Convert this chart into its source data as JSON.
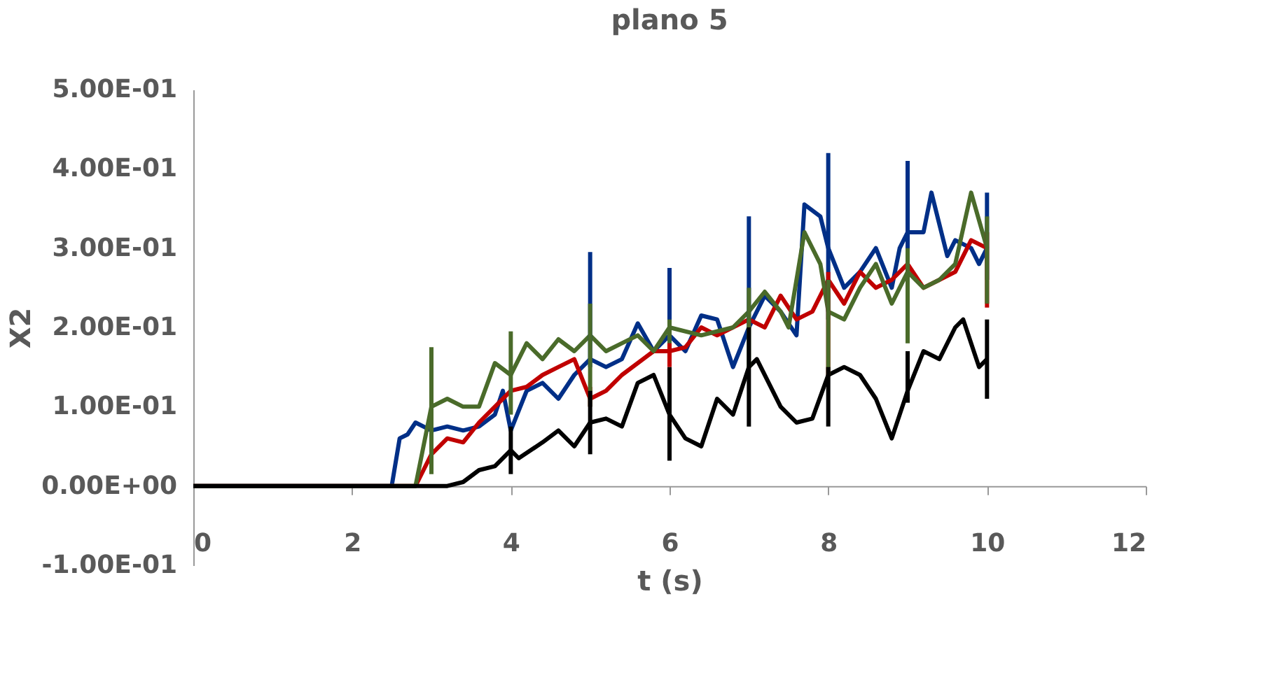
{
  "chart_data": {
    "type": "line",
    "title": "plano 5",
    "xlabel": "t (s)",
    "ylabel": "X2",
    "xlim": [
      0,
      12
    ],
    "xticks": [
      0,
      2,
      4,
      6,
      8,
      10,
      12
    ],
    "ylim": [
      -0.1,
      0.5
    ],
    "yticks": [
      {
        "value": -0.1,
        "label": "-1.00E-01"
      },
      {
        "value": 0,
        "label": "0.00E+00"
      },
      {
        "value": 0.1,
        "label": "1.00E-01"
      },
      {
        "value": 0.2,
        "label": "2.00E-01"
      },
      {
        "value": 0.3,
        "label": "3.00E-01"
      },
      {
        "value": 0.4,
        "label": "4.00E-01"
      },
      {
        "value": 0.5,
        "label": "5.00E-01"
      }
    ],
    "grid": false,
    "legend": false,
    "marker": "none",
    "line_style": "solid",
    "series": [
      {
        "color": "#002f87",
        "x": [
          0,
          2.5,
          2.6,
          2.7,
          2.8,
          3.0,
          3.2,
          3.4,
          3.6,
          3.8,
          3.9,
          4.0,
          4.2,
          4.4,
          4.6,
          4.8,
          5.0,
          5.2,
          5.4,
          5.6,
          5.8,
          6.0,
          6.2,
          6.4,
          6.6,
          6.8,
          7.0,
          7.2,
          7.4,
          7.6,
          7.7,
          7.9,
          8.0,
          8.2,
          8.4,
          8.6,
          8.8,
          8.9,
          9.0,
          9.2,
          9.3,
          9.5,
          9.6,
          9.8,
          9.9,
          10.0
        ],
        "values": [
          0,
          0,
          0.06,
          0.065,
          0.08,
          0.07,
          0.075,
          0.07,
          0.075,
          0.09,
          0.12,
          0.07,
          0.12,
          0.13,
          0.11,
          0.14,
          0.16,
          0.15,
          0.16,
          0.205,
          0.17,
          0.19,
          0.17,
          0.215,
          0.21,
          0.15,
          0.2,
          0.24,
          0.22,
          0.19,
          0.355,
          0.34,
          0.3,
          0.25,
          0.27,
          0.3,
          0.25,
          0.3,
          0.32,
          0.32,
          0.37,
          0.29,
          0.31,
          0.3,
          0.28,
          0.3
        ],
        "errors": [
          null,
          null,
          null,
          null,
          null,
          null,
          null,
          null,
          null,
          null,
          null,
          null,
          null,
          null,
          null,
          null,
          [
            0.15,
            0.295
          ],
          null,
          null,
          null,
          null,
          [
            0.17,
            0.275
          ],
          null,
          null,
          null,
          null,
          [
            0.2,
            0.34
          ],
          null,
          null,
          null,
          null,
          null,
          [
            0.21,
            0.42
          ],
          null,
          null,
          null,
          null,
          null,
          [
            0.26,
            0.41
          ],
          null,
          null,
          null,
          null,
          null,
          null,
          [
            0.26,
            0.37
          ]
        ]
      },
      {
        "color": "#c00000",
        "x": [
          0,
          2.8,
          2.9,
          3.0,
          3.2,
          3.4,
          3.6,
          3.8,
          4.0,
          4.2,
          4.4,
          4.6,
          4.8,
          5.0,
          5.2,
          5.4,
          5.8,
          6.0,
          6.2,
          6.4,
          6.6,
          7.0,
          7.2,
          7.4,
          7.6,
          7.8,
          8.0,
          8.2,
          8.4,
          8.6,
          8.8,
          9.0,
          9.2,
          9.4,
          9.6,
          9.8,
          10.0
        ],
        "values": [
          0,
          0,
          0.02,
          0.04,
          0.06,
          0.055,
          0.08,
          0.1,
          0.12,
          0.125,
          0.14,
          0.15,
          0.16,
          0.11,
          0.12,
          0.14,
          0.17,
          0.17,
          0.175,
          0.2,
          0.19,
          0.21,
          0.2,
          0.24,
          0.21,
          0.22,
          0.26,
          0.23,
          0.27,
          0.25,
          0.26,
          0.28,
          0.25,
          0.26,
          0.27,
          0.31,
          0.3
        ],
        "errors": [
          null,
          null,
          null,
          [
            0.03,
            0.05
          ],
          null,
          null,
          null,
          null,
          null,
          null,
          null,
          null,
          null,
          [
            0.1,
            0.125
          ],
          null,
          null,
          null,
          [
            0.15,
            0.19
          ],
          null,
          null,
          null,
          null,
          null,
          null,
          null,
          null,
          [
            0.14,
            0.27
          ],
          null,
          null,
          null,
          null,
          null,
          null,
          null,
          null,
          null,
          [
            0.225,
            0.32
          ]
        ]
      },
      {
        "color": "#4a6b2a",
        "x": [
          0,
          2.8,
          2.9,
          3.0,
          3.2,
          3.4,
          3.6,
          3.8,
          4.0,
          4.2,
          4.4,
          4.6,
          4.8,
          5.0,
          5.2,
          5.4,
          5.6,
          5.8,
          6.0,
          6.4,
          6.8,
          7.0,
          7.2,
          7.4,
          7.5,
          7.7,
          7.9,
          8.0,
          8.2,
          8.4,
          8.6,
          8.8,
          9.0,
          9.2,
          9.4,
          9.6,
          9.8,
          10.0
        ],
        "values": [
          0,
          0,
          0.05,
          0.1,
          0.11,
          0.1,
          0.1,
          0.155,
          0.14,
          0.18,
          0.16,
          0.185,
          0.17,
          0.19,
          0.17,
          0.18,
          0.19,
          0.17,
          0.2,
          0.19,
          0.2,
          0.22,
          0.245,
          0.22,
          0.2,
          0.32,
          0.28,
          0.22,
          0.21,
          0.25,
          0.28,
          0.23,
          0.27,
          0.25,
          0.26,
          0.28,
          0.37,
          0.3
        ],
        "errors": [
          null,
          null,
          null,
          [
            0.015,
            0.175
          ],
          null,
          null,
          null,
          null,
          [
            0.09,
            0.195
          ],
          null,
          null,
          null,
          null,
          [
            0.1,
            0.23
          ],
          null,
          null,
          null,
          null,
          [
            0.18,
            0.21
          ],
          null,
          null,
          [
            0.15,
            0.25
          ],
          null,
          null,
          null,
          null,
          null,
          [
            0.14,
            0.26
          ],
          null,
          null,
          null,
          null,
          [
            0.18,
            0.3
          ],
          null,
          null,
          null,
          null,
          [
            0.23,
            0.34
          ]
        ]
      },
      {
        "color": "#000000",
        "x": [
          0,
          3.2,
          3.4,
          3.6,
          3.8,
          4.0,
          4.1,
          4.4,
          4.6,
          4.8,
          5.0,
          5.2,
          5.4,
          5.6,
          5.8,
          6.0,
          6.2,
          6.4,
          6.6,
          6.8,
          7.0,
          7.1,
          7.4,
          7.6,
          7.8,
          8.0,
          8.2,
          8.4,
          8.6,
          8.8,
          9.0,
          9.2,
          9.4,
          9.6,
          9.7,
          9.9,
          10.0
        ],
        "values": [
          0,
          0,
          0.005,
          0.02,
          0.025,
          0.045,
          0.035,
          0.055,
          0.07,
          0.05,
          0.08,
          0.085,
          0.075,
          0.13,
          0.14,
          0.09,
          0.06,
          0.05,
          0.11,
          0.09,
          0.15,
          0.16,
          0.1,
          0.08,
          0.085,
          0.14,
          0.15,
          0.14,
          0.11,
          0.06,
          0.12,
          0.17,
          0.16,
          0.2,
          0.21,
          0.15,
          0.16
        ],
        "errors": [
          null,
          null,
          null,
          null,
          null,
          [
            0.015,
            0.075
          ],
          null,
          null,
          null,
          null,
          [
            0.04,
            0.12
          ],
          null,
          null,
          null,
          null,
          [
            0.032,
            0.15
          ],
          null,
          null,
          null,
          null,
          [
            0.075,
            0.2
          ],
          null,
          null,
          null,
          null,
          [
            0.075,
            0.15
          ],
          null,
          null,
          null,
          null,
          [
            0.105,
            0.17
          ],
          null,
          null,
          null,
          null,
          null,
          [
            0.11,
            0.21
          ]
        ]
      }
    ]
  }
}
